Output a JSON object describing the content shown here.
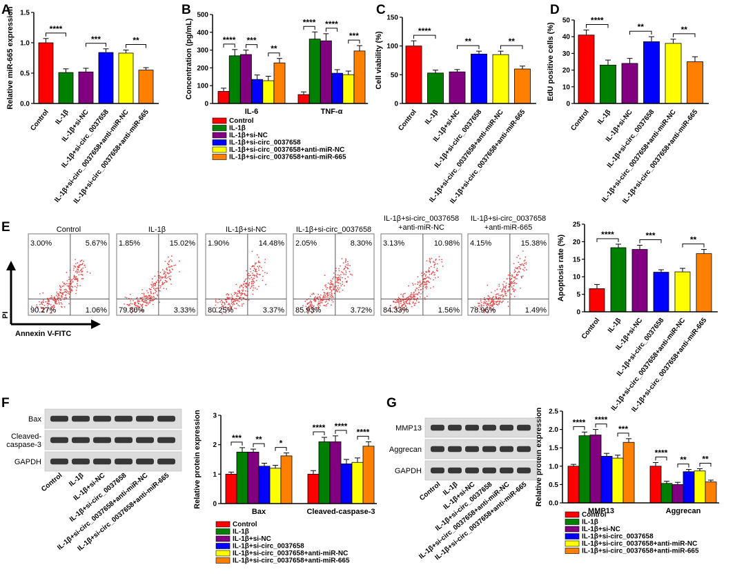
{
  "colors": [
    "#ff0000",
    "#008000",
    "#800080",
    "#0000ff",
    "#ffff00",
    "#ff8000"
  ],
  "group_labels": [
    "Control",
    "IL-1β",
    "IL-1β+si-NC",
    "IL-1β+si-circ_0037658",
    "IL-1β+si-circ_0037658+anti-miR-NC",
    "IL-1β+si-circ_0037658+anti-miR-665"
  ],
  "panel_letters": [
    "A",
    "B",
    "C",
    "D",
    "E",
    "F",
    "G"
  ],
  "chart_data": [
    {
      "id": "A",
      "type": "bar",
      "ylabel": "Relative miR-665 expression",
      "ylim": [
        0,
        1.5
      ],
      "ticks": [
        0.0,
        0.5,
        1.0,
        1.5
      ],
      "tick_labels": [
        "0.0",
        "0.5",
        "1.0",
        "1.5"
      ],
      "values": [
        1.0,
        0.51,
        0.52,
        0.84,
        0.83,
        0.55
      ],
      "errors": [
        0.07,
        0.06,
        0.06,
        0.06,
        0.05,
        0.04
      ],
      "sig": [
        {
          "a": 0,
          "b": 1,
          "label": "****"
        },
        {
          "a": 2,
          "b": 3,
          "label": "***"
        },
        {
          "a": 4,
          "b": 5,
          "label": "**"
        }
      ]
    },
    {
      "id": "B",
      "type": "bar",
      "ylabel": "Concentration (pg/mL)",
      "ylim": [
        0,
        500
      ],
      "ticks": [
        0,
        100,
        200,
        300,
        400,
        500
      ],
      "tick_labels": [
        "0",
        "100",
        "200",
        "300",
        "400",
        "500"
      ],
      "groups": [
        "IL-6",
        "TNF-α"
      ],
      "series_values": [
        [
          68,
          268,
          275,
          135,
          128,
          228
        ],
        [
          50,
          362,
          352,
          170,
          162,
          295
        ]
      ],
      "series_errors": [
        [
          18,
          35,
          25,
          25,
          25,
          25
        ],
        [
          15,
          40,
          40,
          20,
          20,
          30
        ]
      ],
      "sig": [
        [
          {
            "a": 0,
            "b": 1,
            "label": "****"
          },
          {
            "a": 2,
            "b": 3,
            "label": "***"
          },
          {
            "a": 4,
            "b": 5,
            "label": "**"
          }
        ],
        [
          {
            "a": 0,
            "b": 1,
            "label": "****"
          },
          {
            "a": 2,
            "b": 3,
            "label": "****"
          },
          {
            "a": 4,
            "b": 5,
            "label": "***"
          }
        ]
      ]
    },
    {
      "id": "C",
      "type": "bar",
      "ylabel": "Cell viability (%)",
      "ylim": [
        0,
        150
      ],
      "ticks": [
        0,
        50,
        100,
        150
      ],
      "tick_labels": [
        "0",
        "50",
        "100",
        "150"
      ],
      "values": [
        100,
        53,
        55,
        86,
        85,
        60
      ],
      "errors": [
        9,
        5,
        4,
        5,
        6,
        5
      ],
      "sig": [
        {
          "a": 0,
          "b": 1,
          "label": "****"
        },
        {
          "a": 2,
          "b": 3,
          "label": "**"
        },
        {
          "a": 4,
          "b": 5,
          "label": "**"
        }
      ]
    },
    {
      "id": "D",
      "type": "bar",
      "ylabel": "EdU positive cells (%)",
      "ylim": [
        0,
        50
      ],
      "ticks": [
        0,
        10,
        20,
        30,
        40,
        50
      ],
      "tick_labels": [
        "0",
        "10",
        "20",
        "30",
        "40",
        "50"
      ],
      "values": [
        41,
        23,
        24,
        37,
        36,
        25
      ],
      "errors": [
        3,
        3,
        3,
        3,
        2.5,
        3
      ],
      "sig": [
        {
          "a": 0,
          "b": 1,
          "label": "****"
        },
        {
          "a": 2,
          "b": 3,
          "label": "**"
        },
        {
          "a": 4,
          "b": 5,
          "label": "**"
        }
      ]
    },
    {
      "id": "E",
      "type": "bar",
      "ylabel": "Apoptosis rate (%)",
      "ylim": [
        0,
        25
      ],
      "ticks": [
        0,
        5,
        10,
        15,
        20,
        25
      ],
      "tick_labels": [
        "0",
        "5",
        "10",
        "15",
        "20",
        "25"
      ],
      "values": [
        6.6,
        18.3,
        17.8,
        11.3,
        11.4,
        16.6
      ],
      "errors": [
        1.2,
        1.0,
        1.2,
        0.7,
        1.0,
        1.2
      ],
      "sig": [
        {
          "a": 0,
          "b": 1,
          "label": "****"
        },
        {
          "a": 2,
          "b": 3,
          "label": "***"
        },
        {
          "a": 4,
          "b": 5,
          "label": "**"
        }
      ]
    },
    {
      "id": "F",
      "type": "bar",
      "ylabel": "Relative protein expression",
      "ylim": [
        0,
        3
      ],
      "ticks": [
        0,
        1,
        2,
        3
      ],
      "tick_labels": [
        "0",
        "1",
        "2",
        "3"
      ],
      "groups": [
        "Bax",
        "Cleaved-caspase-3"
      ],
      "series_values": [
        [
          1.0,
          1.75,
          1.75,
          1.27,
          1.2,
          1.62
        ],
        [
          1.0,
          2.1,
          2.1,
          1.35,
          1.4,
          1.95
        ]
      ],
      "series_errors": [
        [
          0.07,
          0.15,
          0.1,
          0.1,
          0.1,
          0.1
        ],
        [
          0.12,
          0.15,
          0.2,
          0.15,
          0.15,
          0.15
        ]
      ],
      "sig": [
        [
          {
            "a": 0,
            "b": 1,
            "label": "***"
          },
          {
            "a": 2,
            "b": 3,
            "label": "**"
          },
          {
            "a": 4,
            "b": 5,
            "label": "*"
          }
        ],
        [
          {
            "a": 0,
            "b": 1,
            "label": "****"
          },
          {
            "a": 2,
            "b": 3,
            "label": "****"
          },
          {
            "a": 4,
            "b": 5,
            "label": "****"
          }
        ]
      ]
    },
    {
      "id": "G",
      "type": "bar",
      "ylabel": "Relative protein expression",
      "ylim": [
        0,
        2.5
      ],
      "ticks": [
        0.0,
        0.5,
        1.0,
        1.5,
        2.0,
        2.5
      ],
      "tick_labels": [
        "0.0",
        "0.5",
        "1.0",
        "1.5",
        "2.0",
        "2.5"
      ],
      "groups": [
        "MMP13",
        "Aggrecan"
      ],
      "series_values": [
        [
          1.0,
          1.83,
          1.85,
          1.27,
          1.22,
          1.65
        ],
        [
          1.0,
          0.53,
          0.5,
          0.85,
          0.87,
          0.57
        ]
      ],
      "series_errors": [
        [
          0.05,
          0.1,
          0.15,
          0.08,
          0.08,
          0.1
        ],
        [
          0.1,
          0.06,
          0.06,
          0.06,
          0.06,
          0.05
        ]
      ],
      "sig": [
        [
          {
            "a": 0,
            "b": 1,
            "label": "****"
          },
          {
            "a": 2,
            "b": 3,
            "label": "****"
          },
          {
            "a": 4,
            "b": 5,
            "label": "***"
          }
        ],
        [
          {
            "a": 0,
            "b": 1,
            "label": "****"
          },
          {
            "a": 2,
            "b": 3,
            "label": "**"
          },
          {
            "a": 4,
            "b": 5,
            "label": "**"
          }
        ]
      ]
    }
  ],
  "flow": {
    "titles": [
      "Control",
      "IL-1β",
      "IL-1β+si-NC",
      "IL-1β+si-circ_0037658",
      "IL-1β+si-circ_0037658\n+anti-miR-NC",
      "IL-1β+si-circ_0037658\n+anti-miR-665"
    ],
    "quadrants": [
      [
        "3.00%",
        "5.67%",
        "90.27%",
        "1.06%"
      ],
      [
        "1.85%",
        "15.02%",
        "79.80%",
        "3.33%"
      ],
      [
        "1.90%",
        "14.48%",
        "80.25%",
        "3.37%"
      ],
      [
        "2.05%",
        "8.30%",
        "85.93%",
        "3.72%"
      ],
      [
        "3.13%",
        "10.98%",
        "84.33%",
        "1.56%"
      ],
      [
        "4.15%",
        "15.38%",
        "78.96%",
        "1.49%"
      ]
    ],
    "y_axis": "PI",
    "x_axis": "Annexin V-FITC"
  },
  "blots": {
    "F": {
      "rows": [
        "Bax",
        "Cleaved-\ncaspase-3",
        "GAPDH"
      ]
    },
    "G": {
      "rows": [
        "MMP13",
        "Aggrecan",
        "GAPDH"
      ]
    }
  }
}
